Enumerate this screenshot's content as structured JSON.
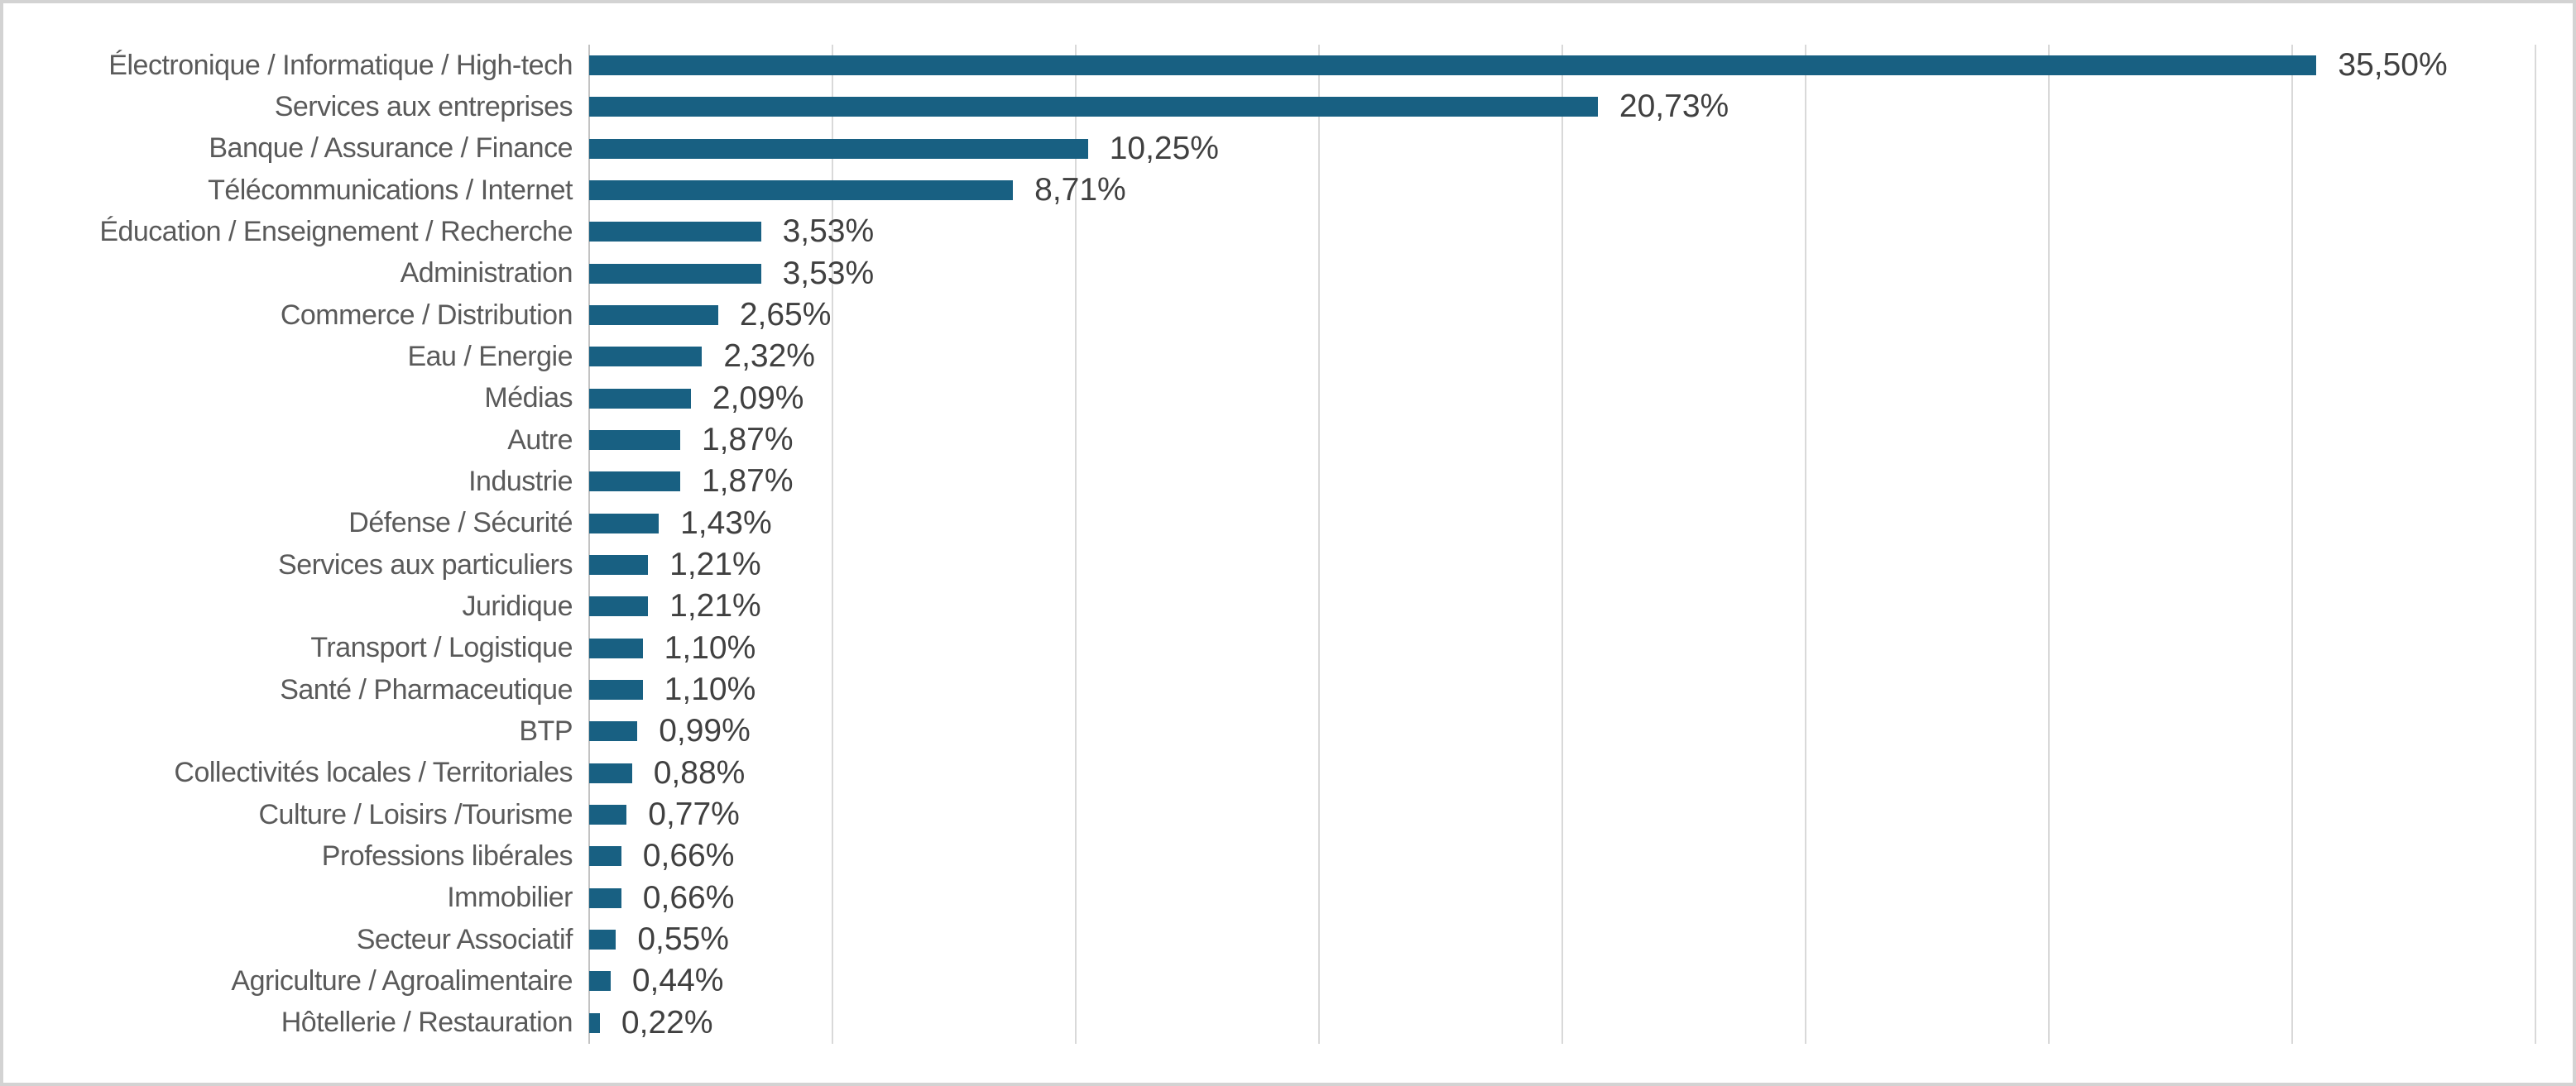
{
  "chart_data": {
    "type": "bar",
    "orientation": "horizontal",
    "title": "",
    "xlabel": "",
    "ylabel": "",
    "legend": "none",
    "grid": "vertical-only",
    "xlim": [
      0,
      40
    ],
    "gridline_step": 5,
    "categories": [
      "Électronique / Informatique / High-tech",
      "Services aux entreprises",
      "Banque / Assurance / Finance",
      "Télécommunications / Internet",
      "Éducation / Enseignement / Recherche",
      "Administration",
      "Commerce / Distribution",
      "Eau / Energie",
      "Médias",
      "Autre",
      "Industrie",
      "Défense / Sécurité",
      "Services aux particuliers",
      "Juridique",
      "Transport / Logistique",
      "Santé / Pharmaceutique",
      "BTP",
      "Collectivités locales / Territoriales",
      "Culture / Loisirs /Tourisme",
      "Professions libérales",
      "Immobilier",
      "Secteur Associatif",
      "Agriculture / Agroalimentaire",
      "Hôtellerie / Restauration"
    ],
    "values": [
      35.5,
      20.73,
      10.25,
      8.71,
      3.53,
      3.53,
      2.65,
      2.32,
      2.09,
      1.87,
      1.87,
      1.43,
      1.21,
      1.21,
      1.1,
      1.1,
      0.99,
      0.88,
      0.77,
      0.66,
      0.66,
      0.55,
      0.44,
      0.22
    ],
    "value_labels": [
      "35,50%",
      "20,73%",
      "10,25%",
      "8,71%",
      "3,53%",
      "3,53%",
      "2,65%",
      "2,32%",
      "2,09%",
      "1,87%",
      "1,87%",
      "1,43%",
      "1,21%",
      "1,21%",
      "1,10%",
      "1,10%",
      "0,99%",
      "0,88%",
      "0,77%",
      "0,66%",
      "0,66%",
      "0,55%",
      "0,44%",
      "0,22%"
    ],
    "colors": {
      "bar": "#186082",
      "gridline": "#d9d9d9",
      "axis_line": "#c3c3c3",
      "category_text": "#5a5a5a",
      "value_text": "#404040",
      "background": "#ffffff",
      "border": "#d3d3d3"
    }
  }
}
